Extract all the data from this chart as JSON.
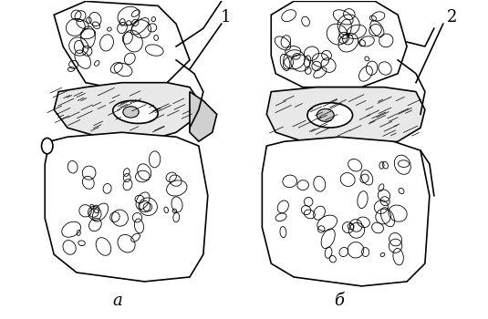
{
  "title": "",
  "label_a": "а",
  "label_b": "б",
  "label_1": "1",
  "label_2": "2",
  "bg_color": "#ffffff",
  "line_color": "#000000",
  "fig_width": 5.35,
  "fig_height": 3.5,
  "dpi": 100
}
